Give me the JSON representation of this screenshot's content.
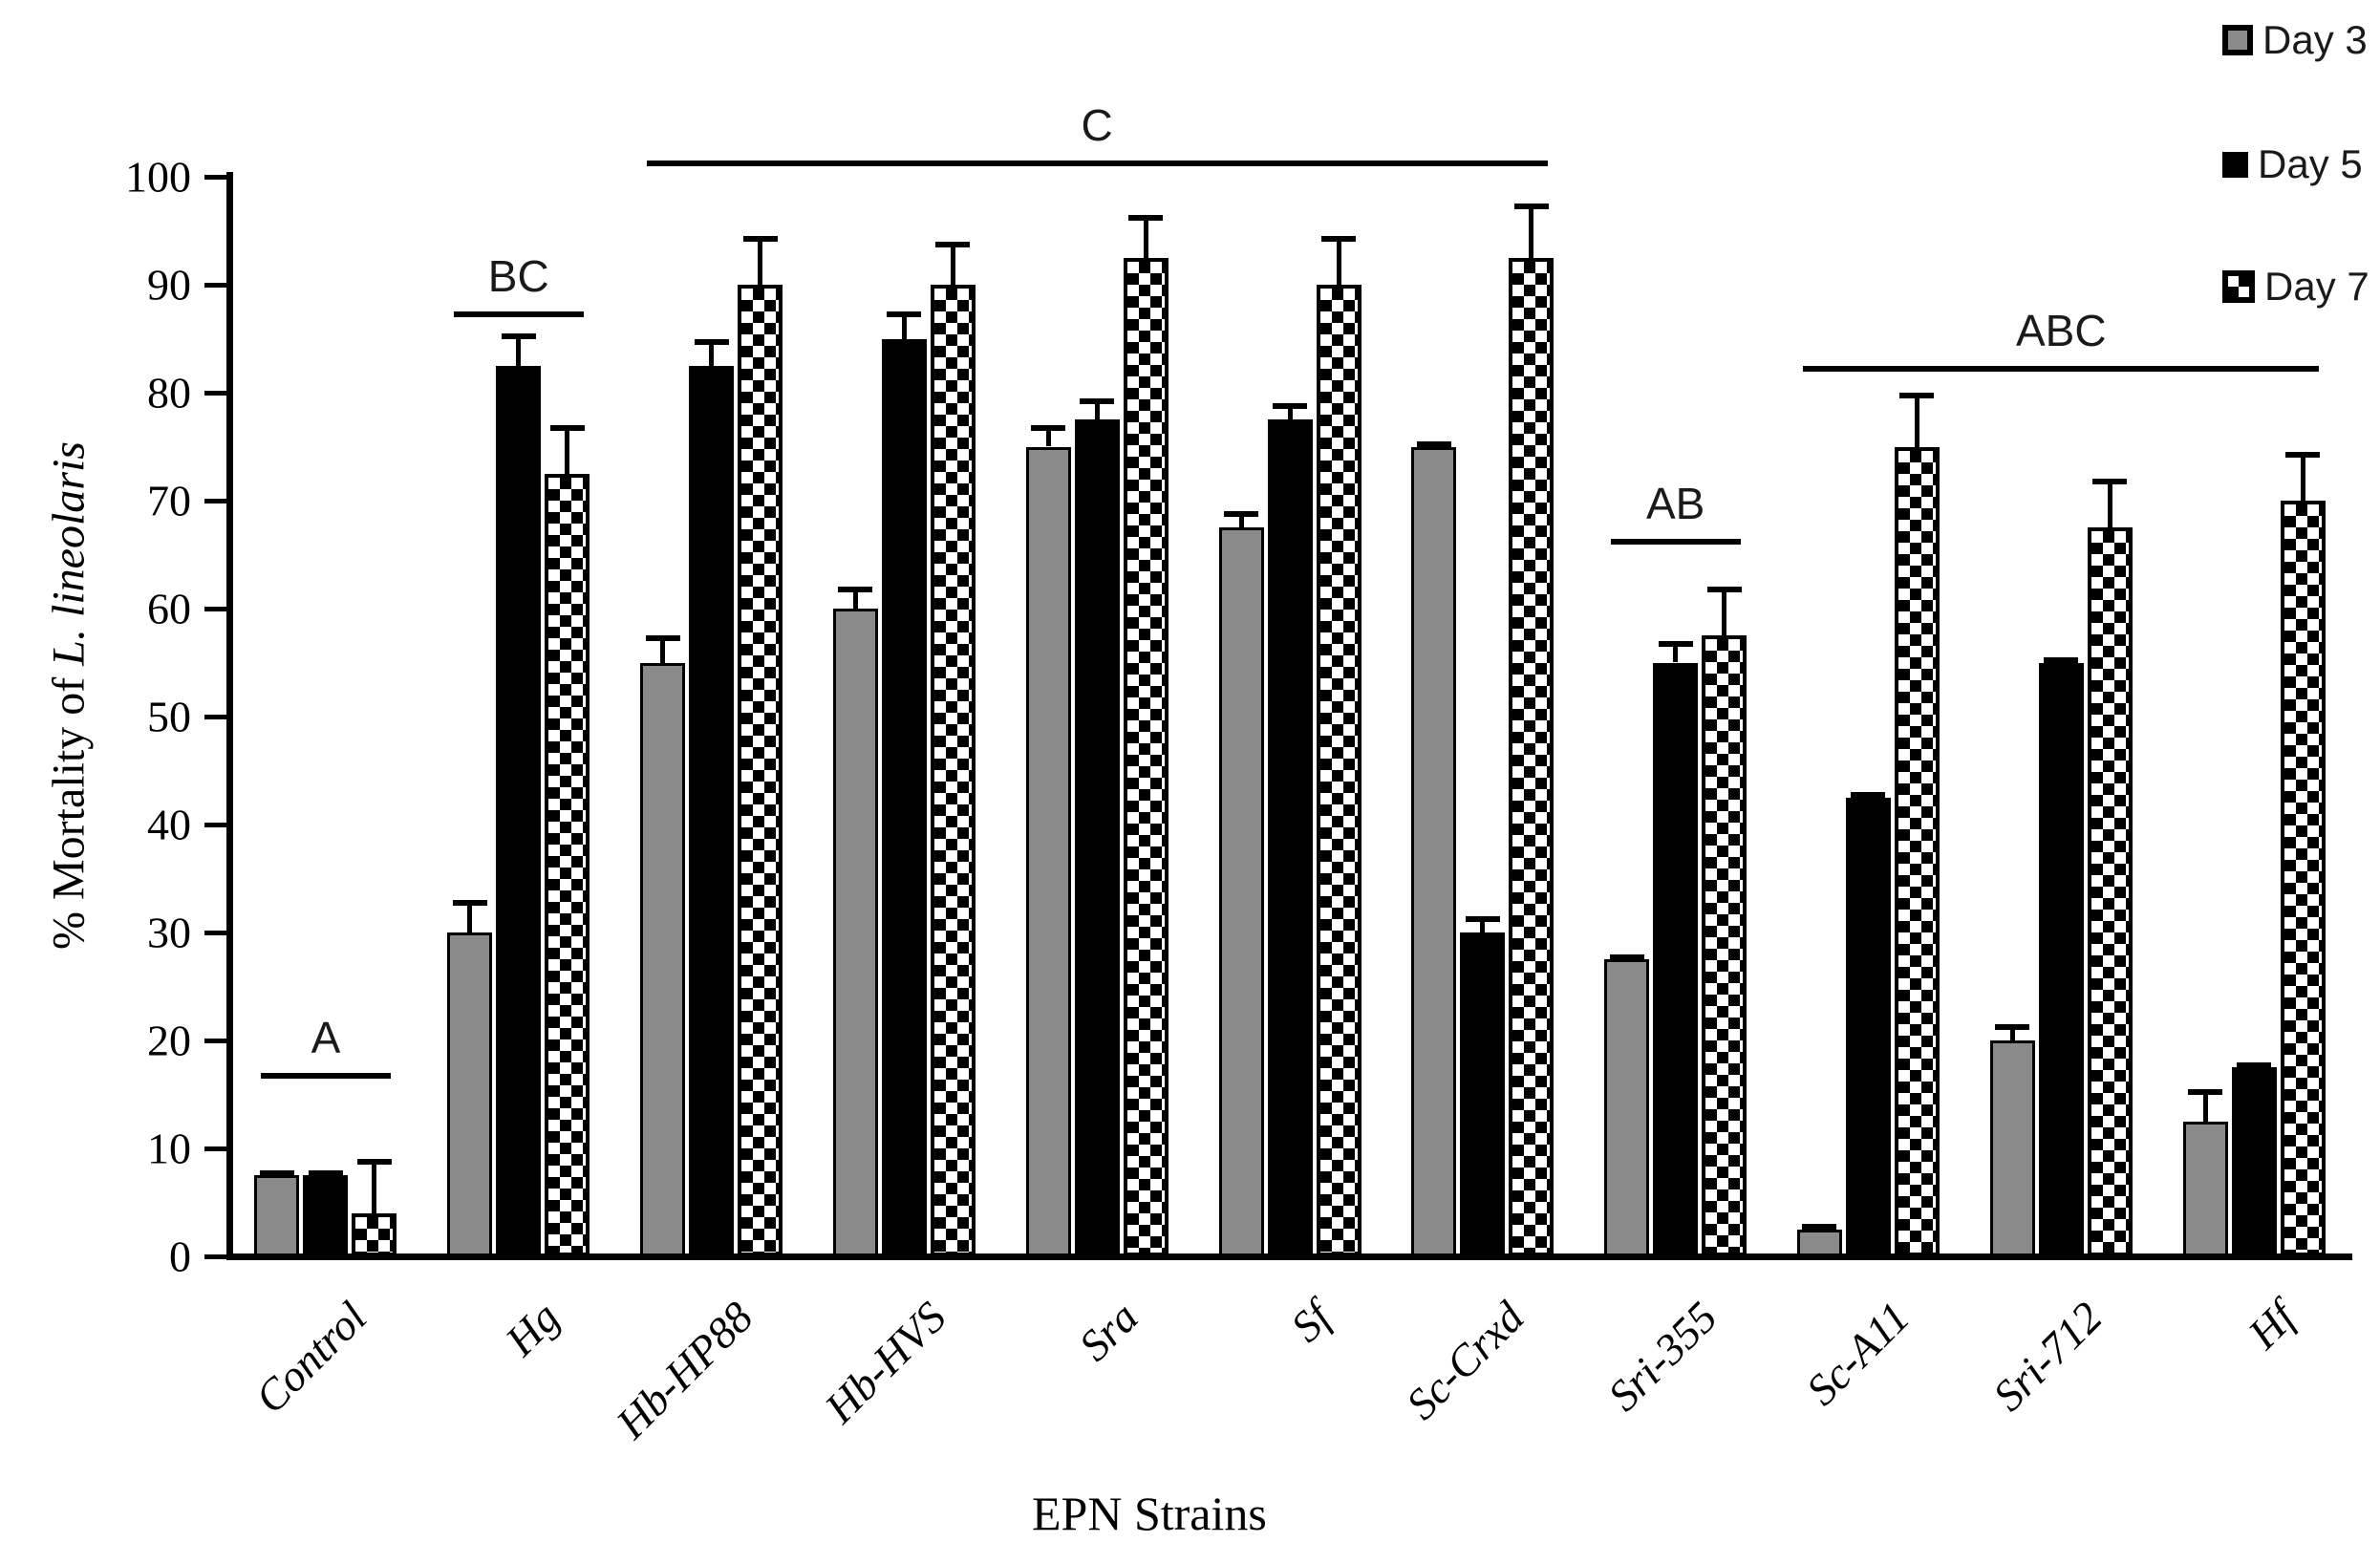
{
  "chart_data": {
    "type": "bar",
    "title": "",
    "xlabel": "EPN Strains",
    "ylabel_prefix": "% Mortality of ",
    "ylabel_italic": "L. lineolaris",
    "ylim": [
      0,
      100
    ],
    "yticks": [
      0,
      10,
      20,
      30,
      40,
      50,
      60,
      70,
      80,
      90,
      100
    ],
    "grid": false,
    "legend_position": "top-right",
    "categories": [
      "Control",
      "Hg",
      "Hb-HP88",
      "Hb-HVS",
      "Sra",
      "Sf",
      "Sc-Crxd",
      "Sri-355",
      "Sc-A11",
      "Sri-712",
      "Hf"
    ],
    "series": [
      {
        "name": "Day 3",
        "style": "gray",
        "values": [
          7.5,
          30,
          55,
          60,
          75,
          67.5,
          75,
          27.5,
          2.5,
          20,
          12.5
        ],
        "errors_upper": [
          0.5,
          3,
          2.5,
          2,
          2,
          1.5,
          0.5,
          0.5,
          0.5,
          1.5,
          3
        ]
      },
      {
        "name": "Day 5",
        "style": "black",
        "values": [
          7.5,
          82.5,
          82.5,
          85,
          77.5,
          77.5,
          30,
          55,
          42.5,
          55,
          17.5
        ],
        "errors_upper": [
          0.5,
          3,
          2.5,
          2.5,
          2,
          1.5,
          1.5,
          2,
          0.5,
          0.5,
          0.5
        ]
      },
      {
        "name": "Day 7",
        "style": "checker",
        "values": [
          4,
          72.5,
          90,
          90,
          92.5,
          90,
          92.5,
          57.5,
          75,
          67.5,
          70
        ],
        "errors_upper": [
          5,
          4.5,
          4.5,
          4,
          4,
          4.5,
          5,
          4.5,
          5,
          4.5,
          4.5
        ]
      }
    ],
    "legend": [
      "Day 3",
      "Day 5",
      "Day 7"
    ],
    "annotations": [
      {
        "label": "A",
        "from_group": 0,
        "to_group": 0,
        "y": 17
      },
      {
        "label": "BC",
        "from_group": 1,
        "to_group": 1,
        "y": 87.5
      },
      {
        "label": "C",
        "from_group": 2,
        "to_group": 6,
        "y": 101.5
      },
      {
        "label": "AB",
        "from_group": 7,
        "to_group": 7,
        "y": 66.5
      },
      {
        "label": "ABC",
        "from_group": 8,
        "to_group": 10,
        "y": 82.5
      }
    ],
    "colors": {
      "day3_fill": "#8a8a8a",
      "day5_fill": "#000000",
      "checker_fg": "#000000",
      "checker_bg": "#ffffff",
      "axis": "#000000"
    }
  }
}
